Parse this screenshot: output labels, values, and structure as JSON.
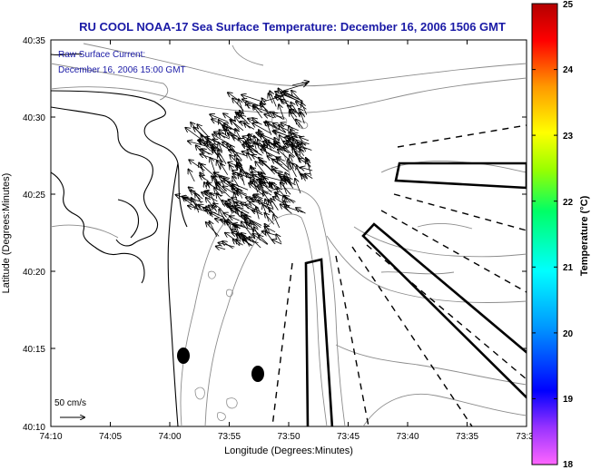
{
  "title": "RU COOL  NOAA-17  Sea Surface Temperature:  December 16, 2006 1506 GMT",
  "inset": {
    "line1": "Raw Surface Current:",
    "line2": "December 16, 2006 15:00 GMT"
  },
  "axes": {
    "xlabel": "Longitude (Degrees:Minutes)",
    "ylabel": "Latitude (Degrees:Minutes)",
    "xticks": [
      "74:10",
      "74:05",
      "74:00",
      "73:55",
      "73:50",
      "73:45",
      "73:40",
      "73:35",
      "73:3"
    ],
    "yticks": [
      "40:35",
      "40:30",
      "40:25",
      "40:20",
      "40:15",
      "40:10"
    ]
  },
  "scale_arrow": {
    "label": "50 cm/s"
  },
  "colorbar": {
    "label": "Temperature (°C)",
    "ticks": [
      "25",
      "24",
      "23",
      "22",
      "21",
      "20",
      "19",
      "18"
    ],
    "range": [
      18,
      25
    ],
    "colormap": "jet-like (magenta-blue-cyan-green-yellow-red)"
  },
  "map_features": {
    "coastline_color": "#000000",
    "bathymetry_contour_color": "#8c8c8c",
    "dumping_zones": "thick black polygons (shipping lanes / dump sites)",
    "dashed_lines": "dashed black radial lines (traffic separation lanes)",
    "markers": [
      "filled ellipse near 74:00 W, 40:15 N",
      "filled ellipse near 73:52 W, 40:13 N"
    ],
    "current_vectors": "dense field of raw surface current arrows near 73:55 W, 40:25 N, pointing mostly north-west"
  }
}
